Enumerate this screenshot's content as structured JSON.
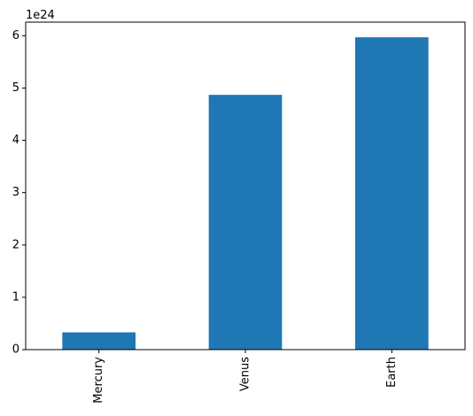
{
  "chart_data": {
    "type": "bar",
    "categories": [
      "Mercury",
      "Venus",
      "Earth"
    ],
    "values": [
      3.3e+23,
      4.87e+24,
      5.97e+24
    ],
    "ylim": [
      0,
      6.26e+24
    ],
    "yticks": [
      0,
      1e+24,
      2e+24,
      3e+24,
      4e+24,
      5e+24,
      6e+24
    ],
    "ytick_labels": [
      "0",
      "1",
      "2",
      "3",
      "4",
      "5",
      "6"
    ],
    "y_offset_label": "1e24",
    "xlabel": "",
    "ylabel": "",
    "title": "",
    "grid": false,
    "legend": false,
    "bar_color": "#1f77b4"
  }
}
